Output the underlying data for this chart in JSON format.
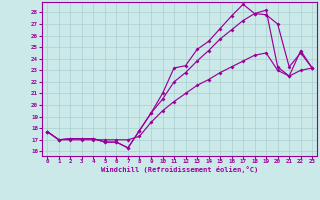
{
  "xlabel": "Windchill (Refroidissement éolien,°C)",
  "xlim_min": -0.5,
  "xlim_max": 23.4,
  "ylim_min": 15.6,
  "ylim_max": 28.9,
  "xticks": [
    0,
    1,
    2,
    3,
    4,
    5,
    6,
    7,
    8,
    9,
    10,
    11,
    12,
    13,
    14,
    15,
    16,
    17,
    18,
    19,
    20,
    21,
    22,
    23
  ],
  "yticks": [
    16,
    17,
    18,
    19,
    20,
    21,
    22,
    23,
    24,
    25,
    26,
    27,
    28
  ],
  "bg_color": "#cce9e9",
  "line_color": "#990099",
  "grid_color": "#aacfcf",
  "c1x": [
    0,
    1,
    2,
    3,
    4,
    5,
    6,
    7,
    8,
    9,
    10,
    11,
    12,
    13,
    14,
    15,
    16,
    17,
    18,
    19,
    20,
    21,
    22,
    23
  ],
  "c1y": [
    17.7,
    17.0,
    17.1,
    17.1,
    17.1,
    16.8,
    16.8,
    16.3,
    17.8,
    19.3,
    21.0,
    23.2,
    23.4,
    24.8,
    25.5,
    26.6,
    27.7,
    28.7,
    27.9,
    27.8,
    27.0,
    23.3,
    24.5,
    23.2
  ],
  "c2x": [
    0,
    1,
    2,
    3,
    4,
    5,
    6,
    7,
    8,
    9,
    10,
    11,
    12,
    13,
    14,
    15,
    16,
    17,
    18,
    19,
    20,
    21,
    22,
    23
  ],
  "c2y": [
    17.7,
    17.0,
    17.1,
    17.1,
    17.1,
    16.8,
    16.8,
    16.3,
    17.8,
    19.3,
    20.5,
    22.0,
    22.8,
    23.8,
    24.7,
    25.7,
    26.5,
    27.3,
    27.9,
    28.2,
    23.3,
    22.5,
    24.7,
    23.2
  ],
  "c3x": [
    0,
    1,
    2,
    3,
    4,
    5,
    6,
    7,
    8,
    9,
    10,
    11,
    12,
    13,
    14,
    15,
    16,
    17,
    18,
    19,
    20,
    21,
    22,
    23
  ],
  "c3y": [
    17.7,
    17.0,
    17.0,
    17.0,
    17.0,
    17.0,
    17.0,
    17.0,
    17.3,
    18.5,
    19.5,
    20.3,
    21.0,
    21.7,
    22.2,
    22.8,
    23.3,
    23.8,
    24.3,
    24.5,
    23.0,
    22.5,
    23.0,
    23.2
  ]
}
